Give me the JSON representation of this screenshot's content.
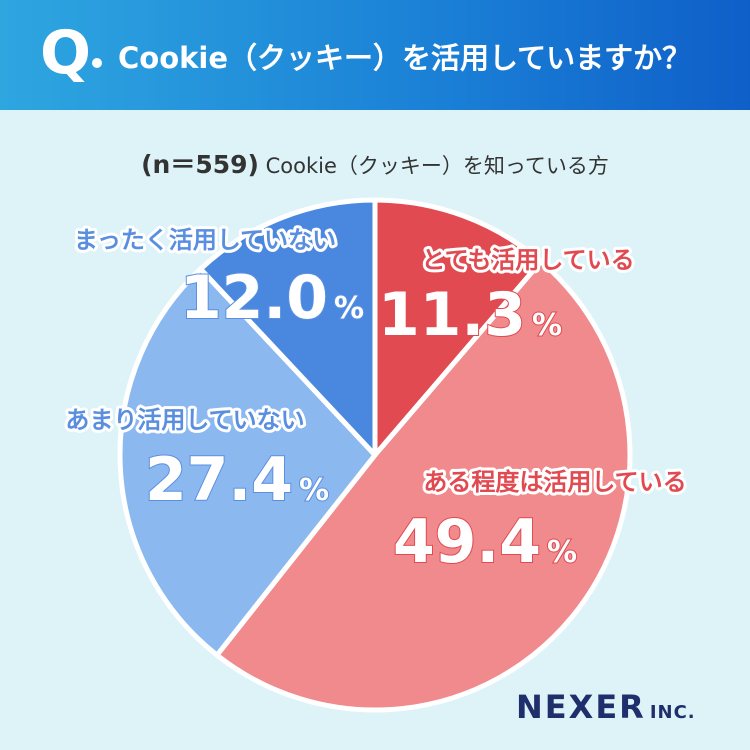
{
  "header": {
    "q_mark": "Q",
    "title": "Cookie（クッキー）を活用していますか？"
  },
  "subtitle": {
    "n_label": "(n＝559)",
    "text": " Cookie（クッキー）を知っている方"
  },
  "logo": {
    "main": "NEXER",
    "suffix": "INC."
  },
  "chart_data": {
    "type": "pie",
    "start_angle_deg": 0,
    "direction": "clockwise",
    "slices": [
      {
        "label": "とても活用している",
        "value": 11.3,
        "value_label": "11.3",
        "unit": "%",
        "color": "#e04a50"
      },
      {
        "label": "ある程度は活用している",
        "value": 49.4,
        "value_label": "49.4",
        "unit": "%",
        "color": "#f08a8c"
      },
      {
        "label": "あまり活用していない",
        "value": 27.4,
        "value_label": "27.4",
        "unit": "%",
        "color": "#8cb8f0"
      },
      {
        "label": "まったく活用していない",
        "value": 12.0,
        "value_label": "12.0",
        "unit": "%",
        "color": "#4a88e0"
      }
    ],
    "label_colors": [
      "#e04a50",
      "#e04a50",
      "#5a8fe0",
      "#5a8fe0"
    ]
  }
}
